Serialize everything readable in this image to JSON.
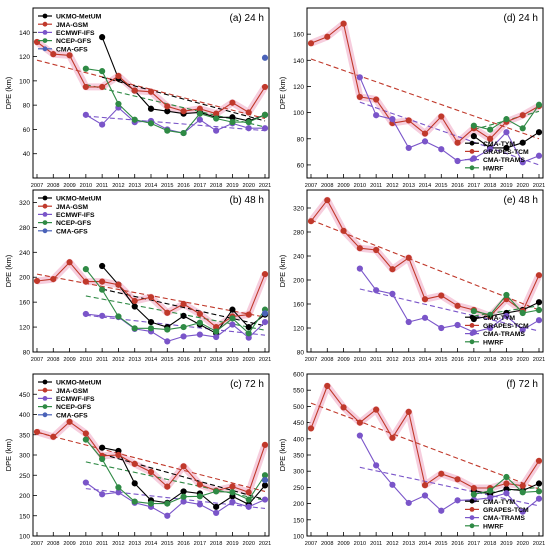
{
  "chart_data": [
    {
      "type": "line",
      "panel": "(a) 24 h",
      "ylabel": "DPE (km)",
      "x": [
        2007,
        2008,
        2009,
        2010,
        2011,
        2012,
        2013,
        2014,
        2015,
        2016,
        2017,
        2018,
        2019,
        2020,
        2021
      ],
      "xlim": [
        2007,
        2021
      ],
      "ylim": [
        20,
        160
      ],
      "yticks": [
        40,
        60,
        80,
        100,
        120,
        140
      ],
      "legend_position": "top-left",
      "series": [
        {
          "name": "UKMO-MetUM",
          "color": "#000000",
          "values": [
            null,
            null,
            null,
            null,
            136,
            102,
            92,
            77,
            75,
            73,
            74,
            70,
            70,
            67,
            72
          ]
        },
        {
          "name": "JMA-GSM",
          "color": "#c0392b",
          "values": [
            132,
            122,
            121,
            95,
            95,
            104,
            92,
            91,
            79,
            75,
            77,
            73,
            82,
            74,
            95
          ]
        },
        {
          "name": "ECMWF-IFS",
          "color": "#7a55c9",
          "values": [
            null,
            null,
            null,
            72,
            64,
            78,
            66,
            67,
            60,
            57,
            68,
            59,
            65,
            61,
            61
          ]
        },
        {
          "name": "NCEP-GFS",
          "color": "#2f8a45",
          "values": [
            null,
            null,
            null,
            110,
            108,
            81,
            68,
            65,
            59,
            57,
            73,
            69,
            66,
            66,
            72
          ]
        },
        {
          "name": "CMA-GFS",
          "color": "#4a62b8",
          "values": [
            null,
            null,
            null,
            null,
            null,
            null,
            null,
            null,
            null,
            null,
            null,
            null,
            null,
            null,
            119
          ]
        }
      ],
      "trends": [
        {
          "series": "JMA-GSM",
          "start": [
            2007,
            117
          ],
          "end": [
            2021,
            69
          ]
        },
        {
          "series": "UKMO-MetUM",
          "start": [
            2011,
            103
          ],
          "end": [
            2021,
            67
          ]
        },
        {
          "series": "NCEP-GFS",
          "start": [
            2010,
            97
          ],
          "end": [
            2021,
            62
          ]
        },
        {
          "series": "ECMWF-IFS",
          "start": [
            2010,
            71
          ],
          "end": [
            2021,
            59
          ]
        }
      ]
    },
    {
      "type": "line",
      "panel": "(b) 48 h",
      "ylabel": "DPE (km)",
      "x": [
        2007,
        2008,
        2009,
        2010,
        2011,
        2012,
        2013,
        2014,
        2015,
        2016,
        2017,
        2018,
        2019,
        2020,
        2021
      ],
      "xlim": [
        2007,
        2021
      ],
      "ylim": [
        80,
        340
      ],
      "yticks": [
        80,
        120,
        160,
        200,
        240,
        280,
        320
      ],
      "legend_position": "top-left",
      "series": [
        {
          "name": "UKMO-MetUM",
          "color": "#000000",
          "values": [
            null,
            null,
            null,
            null,
            218,
            188,
            153,
            128,
            120,
            138,
            124,
            110,
            148,
            120,
            140
          ]
        },
        {
          "name": "JMA-GSM",
          "color": "#c0392b",
          "values": [
            194,
            197,
            224,
            193,
            193,
            188,
            162,
            168,
            143,
            157,
            141,
            120,
            137,
            140,
            205
          ]
        },
        {
          "name": "ECMWF-IFS",
          "color": "#7a55c9",
          "values": [
            null,
            null,
            null,
            141,
            138,
            136,
            117,
            113,
            97,
            105,
            108,
            104,
            124,
            103,
            128
          ]
        },
        {
          "name": "NCEP-GFS",
          "color": "#2f8a45",
          "values": [
            null,
            null,
            null,
            213,
            180,
            137,
            118,
            118,
            116,
            120,
            127,
            113,
            134,
            110,
            148
          ]
        },
        {
          "name": "CMA-GFS",
          "color": "#4a62b8",
          "values": [
            null,
            null,
            null,
            null,
            null,
            null,
            null,
            null,
            null,
            null,
            null,
            null,
            null,
            null,
            142
          ]
        }
      ],
      "trends": [
        {
          "series": "JMA-GSM",
          "start": [
            2007,
            205
          ],
          "end": [
            2021,
            136
          ]
        },
        {
          "series": "UKMO-MetUM",
          "start": [
            2011,
            181
          ],
          "end": [
            2021,
            122
          ]
        },
        {
          "series": "NCEP-GFS",
          "start": [
            2010,
            170
          ],
          "end": [
            2021,
            115
          ]
        },
        {
          "series": "ECMWF-IFS",
          "start": [
            2010,
            139
          ],
          "end": [
            2021,
            107
          ]
        }
      ]
    },
    {
      "type": "line",
      "panel": "(c) 72 h",
      "ylabel": "DPE (km)",
      "x": [
        2007,
        2008,
        2009,
        2010,
        2011,
        2012,
        2013,
        2014,
        2015,
        2016,
        2017,
        2018,
        2019,
        2020,
        2021
      ],
      "xlim": [
        2007,
        2021
      ],
      "ylim": [
        100,
        500
      ],
      "yticks": [
        100,
        150,
        200,
        250,
        300,
        350,
        400,
        450
      ],
      "legend_position": "top-left",
      "series": [
        {
          "name": "UKMO-MetUM",
          "color": "#000000",
          "values": [
            null,
            null,
            null,
            null,
            318,
            310,
            230,
            188,
            182,
            210,
            205,
            172,
            198,
            178,
            225
          ]
        },
        {
          "name": "JMA-GSM",
          "color": "#c0392b",
          "values": [
            357,
            345,
            382,
            353,
            298,
            300,
            278,
            258,
            222,
            272,
            227,
            212,
            222,
            208,
            325
          ]
        },
        {
          "name": "ECMWF-IFS",
          "color": "#7a55c9",
          "values": [
            null,
            null,
            null,
            232,
            203,
            208,
            182,
            172,
            150,
            185,
            178,
            157,
            184,
            172,
            190
          ]
        },
        {
          "name": "NCEP-GFS",
          "color": "#2f8a45",
          "values": [
            null,
            null,
            null,
            338,
            290,
            220,
            185,
            180,
            180,
            197,
            198,
            210,
            208,
            190,
            250
          ]
        },
        {
          "name": "CMA-GFS",
          "color": "#4a62b8",
          "values": [
            null,
            null,
            null,
            null,
            null,
            null,
            null,
            null,
            null,
            null,
            null,
            null,
            null,
            null,
            238
          ]
        }
      ],
      "trends": [
        {
          "series": "JMA-GSM",
          "start": [
            2007,
            356
          ],
          "end": [
            2021,
            210
          ]
        },
        {
          "series": "UKMO-MetUM",
          "start": [
            2011,
            302
          ],
          "end": [
            2021,
            190
          ]
        },
        {
          "series": "NCEP-GFS",
          "start": [
            2010,
            283
          ],
          "end": [
            2021,
            188
          ]
        },
        {
          "series": "ECMWF-IFS",
          "start": [
            2010,
            217
          ],
          "end": [
            2021,
            168
          ]
        }
      ]
    },
    {
      "type": "line",
      "panel": "(d) 24 h",
      "ylabel": "DPE (km)",
      "x": [
        2007,
        2008,
        2009,
        2010,
        2011,
        2012,
        2013,
        2014,
        2015,
        2016,
        2017,
        2018,
        2019,
        2020,
        2021
      ],
      "xlim": [
        2007,
        2021
      ],
      "ylim": [
        50,
        180
      ],
      "yticks": [
        60,
        80,
        100,
        120,
        140,
        160
      ],
      "legend_position": "bottom-right",
      "series": [
        {
          "name": "CMA-TYM",
          "color": "#000000",
          "values": [
            null,
            null,
            null,
            null,
            null,
            null,
            null,
            null,
            null,
            null,
            82,
            73,
            73,
            77,
            85
          ]
        },
        {
          "name": "GRAPES-TCM",
          "color": "#c0392b",
          "values": [
            153,
            158,
            168,
            112,
            110,
            92,
            94,
            84,
            97,
            77,
            88,
            80,
            93,
            98,
            105
          ]
        },
        {
          "name": "CMA-TRAMS",
          "color": "#7a55c9",
          "values": [
            null,
            null,
            null,
            127,
            98,
            95,
            73,
            78,
            72,
            63,
            65,
            72,
            85,
            62,
            67
          ]
        },
        {
          "name": "HWRF",
          "color": "#2f8a45",
          "values": [
            null,
            null,
            null,
            null,
            null,
            null,
            null,
            null,
            null,
            null,
            90,
            87,
            95,
            88,
            106
          ]
        }
      ],
      "trends": [
        {
          "series": "GRAPES-TCM",
          "start": [
            2007,
            141
          ],
          "end": [
            2021,
            80
          ]
        },
        {
          "series": "CMA-TRAMS",
          "start": [
            2010,
            108
          ],
          "end": [
            2021,
            60
          ]
        },
        {
          "series": "HWRF",
          "start": [
            2017,
            87
          ],
          "end": [
            2021,
            101
          ]
        }
      ]
    },
    {
      "type": "line",
      "panel": "(e) 48 h",
      "ylabel": "DPE (km)",
      "x": [
        2007,
        2008,
        2009,
        2010,
        2011,
        2012,
        2013,
        2014,
        2015,
        2016,
        2017,
        2018,
        2019,
        2020,
        2021
      ],
      "xlim": [
        2007,
        2021
      ],
      "ylim": [
        80,
        350
      ],
      "yticks": [
        80,
        120,
        160,
        200,
        240,
        280,
        320
      ],
      "legend_position": "bottom-right",
      "series": [
        {
          "name": "CMA-TYM",
          "color": "#000000",
          "values": [
            null,
            null,
            null,
            null,
            null,
            null,
            null,
            null,
            null,
            null,
            135,
            140,
            145,
            150,
            163
          ]
        },
        {
          "name": "GRAPES-TCM",
          "color": "#c0392b",
          "values": [
            298,
            333,
            282,
            253,
            250,
            218,
            237,
            168,
            174,
            157,
            150,
            140,
            168,
            148,
            208
          ]
        },
        {
          "name": "CMA-TRAMS",
          "color": "#7a55c9",
          "values": [
            null,
            null,
            null,
            219,
            183,
            177,
            130,
            137,
            120,
            125,
            113,
            120,
            140,
            117,
            133
          ]
        },
        {
          "name": "HWRF",
          "color": "#2f8a45",
          "values": [
            null,
            null,
            null,
            null,
            null,
            null,
            null,
            null,
            null,
            null,
            148,
            142,
            175,
            145,
            150
          ]
        }
      ],
      "trends": [
        {
          "series": "GRAPES-TCM",
          "start": [
            2007,
            300
          ],
          "end": [
            2021,
            150
          ]
        },
        {
          "series": "CMA-TRAMS",
          "start": [
            2010,
            185
          ],
          "end": [
            2021,
            115
          ]
        },
        {
          "series": "HWRF",
          "start": [
            2017,
            140
          ],
          "end": [
            2021,
            157
          ]
        }
      ]
    },
    {
      "type": "line",
      "panel": "(f) 72 h",
      "ylabel": "DPE (km)",
      "x": [
        2007,
        2008,
        2009,
        2010,
        2011,
        2012,
        2013,
        2014,
        2015,
        2016,
        2017,
        2018,
        2019,
        2020,
        2021
      ],
      "xlim": [
        2007,
        2021
      ],
      "ylim": [
        100,
        600
      ],
      "yticks": [
        100,
        150,
        200,
        250,
        300,
        350,
        400,
        450,
        500,
        550,
        600
      ],
      "legend_position": "bottom-right",
      "series": [
        {
          "name": "CMA-TYM",
          "color": "#000000",
          "values": [
            null,
            null,
            null,
            null,
            null,
            null,
            null,
            null,
            null,
            null,
            240,
            230,
            245,
            240,
            262
          ]
        },
        {
          "name": "GRAPES-TCM",
          "color": "#c0392b",
          "values": [
            432,
            563,
            497,
            450,
            490,
            403,
            483,
            257,
            292,
            275,
            248,
            248,
            262,
            255,
            332
          ]
        },
        {
          "name": "CMA-TRAMS",
          "color": "#7a55c9",
          "values": [
            null,
            null,
            null,
            410,
            318,
            258,
            202,
            225,
            178,
            210,
            212,
            218,
            232,
            175,
            215
          ]
        },
        {
          "name": "HWRF",
          "color": "#2f8a45",
          "values": [
            null,
            null,
            null,
            null,
            null,
            null,
            null,
            null,
            null,
            null,
            228,
            240,
            282,
            235,
            238
          ]
        }
      ],
      "trends": [
        {
          "series": "GRAPES-TCM",
          "start": [
            2007,
            510
          ],
          "end": [
            2021,
            245
          ]
        },
        {
          "series": "CMA-TRAMS",
          "start": [
            2010,
            312
          ],
          "end": [
            2021,
            193
          ]
        },
        {
          "series": "HWRF",
          "start": [
            2017,
            230
          ],
          "end": [
            2021,
            250
          ]
        }
      ]
    }
  ]
}
